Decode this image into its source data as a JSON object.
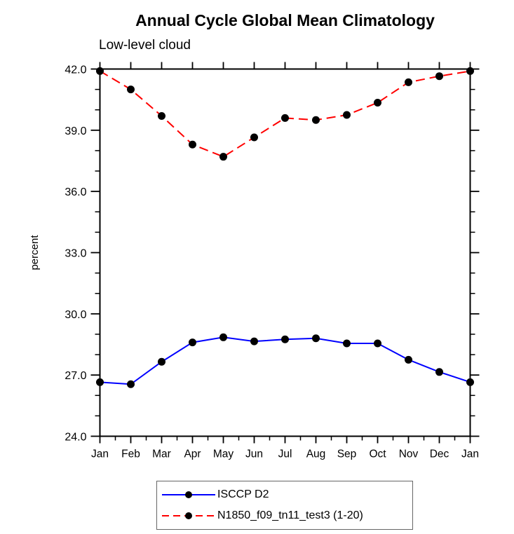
{
  "chart_data": {
    "type": "line",
    "title": "Annual Cycle Global Mean Climatology",
    "subtitle": "Low-level cloud",
    "ylabel": "percent",
    "xlabel": "",
    "x_categories": [
      "Jan",
      "Feb",
      "Mar",
      "Apr",
      "May",
      "Jun",
      "Jul",
      "Aug",
      "Sep",
      "Oct",
      "Nov",
      "Dec",
      "Jan"
    ],
    "ylim": [
      24.0,
      42.0
    ],
    "y_major_ticks": [
      24.0,
      27.0,
      30.0,
      33.0,
      36.0,
      39.0,
      42.0
    ],
    "y_minor_step": 1.0,
    "x_minor_step": 0.5,
    "y_tick_format": "one-decimal",
    "grid": false,
    "legend_position": "bottom-center",
    "frame_color": "#000000",
    "marker_color": "#000000",
    "series": [
      {
        "name": "ISCCP D2",
        "color": "#0000ff",
        "line_style": "solid",
        "marker": "circle",
        "values": [
          26.65,
          26.55,
          27.65,
          28.6,
          28.85,
          28.65,
          28.75,
          28.8,
          28.55,
          28.55,
          27.75,
          27.15,
          26.65
        ]
      },
      {
        "name": "N1850_f09_tn11_test3 (1-20)",
        "color": "#ff0000",
        "line_style": "dashed",
        "marker": "circle",
        "values": [
          41.9,
          41.0,
          39.7,
          38.3,
          37.7,
          38.65,
          39.6,
          39.5,
          39.75,
          40.35,
          41.35,
          41.65,
          41.9
        ]
      }
    ]
  }
}
